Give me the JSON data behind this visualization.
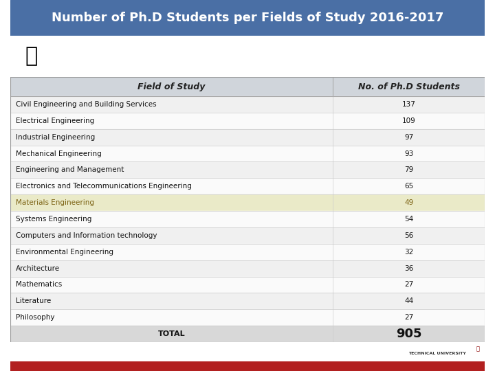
{
  "title": "Number of Ph.D Students per Fields of Study 2016-2017",
  "title_bg": "#4a6fa5",
  "title_color": "#ffffff",
  "header_bg": "#d0d5db",
  "header_fields": [
    "Field of Study",
    "No. of Ph.D Students"
  ],
  "rows": [
    [
      "Civil Engineering and Building Services",
      "137"
    ],
    [
      "Electrical Engineering",
      "109"
    ],
    [
      "Industrial Engineering",
      "97"
    ],
    [
      "Mechanical Engineering",
      "93"
    ],
    [
      "Engineering and Management",
      "79"
    ],
    [
      "Electronics and Telecommunications Engineering",
      "65"
    ],
    [
      "Materials Engineering",
      "49"
    ],
    [
      "Systems Engineering",
      "54"
    ],
    [
      "Computers and Information technology",
      "56"
    ],
    [
      "Environmental Engineering",
      "32"
    ],
    [
      "Architecture",
      "36"
    ],
    [
      "Mathematics",
      "27"
    ],
    [
      "Literature",
      "44"
    ],
    [
      "Philosophy",
      "27"
    ],
    [
      "TOTAL",
      "905"
    ]
  ],
  "highlight_row": 6,
  "highlight_bg": "#eaeac8",
  "highlight_text_color": "#7a6010",
  "row_bg_even": "#f0f0f0",
  "row_bg_odd": "#fafafa",
  "total_row_bg": "#d8d8d8",
  "col_split": 0.68,
  "footer_bar_color": "#b22020",
  "font_size_title": 13,
  "font_size_header": 9,
  "font_size_row": 7.5,
  "font_size_total_label": 8,
  "font_size_total_value": 13
}
